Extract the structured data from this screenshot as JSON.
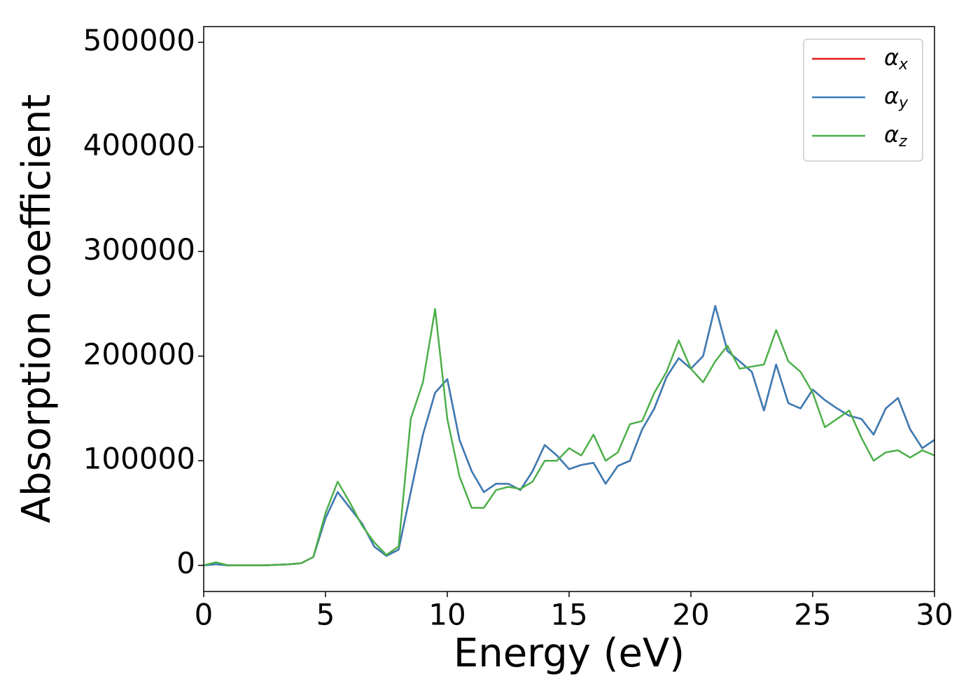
{
  "chart_data": {
    "type": "line",
    "xlabel": "Energy (eV)",
    "ylabel": "Absorption coefficient",
    "x": [
      0,
      0.5,
      1,
      1.5,
      2,
      2.5,
      3,
      3.5,
      4,
      4.5,
      5,
      5.5,
      6,
      6.5,
      7,
      7.5,
      8,
      8.5,
      9,
      9.5,
      10,
      10.5,
      11,
      11.5,
      12,
      12.5,
      13,
      13.5,
      14,
      14.5,
      15,
      15.5,
      16,
      16.5,
      17,
      17.5,
      18,
      18.5,
      19,
      19.5,
      20,
      20.5,
      21,
      21.5,
      22,
      22.5,
      23,
      23.5,
      24,
      24.5,
      25,
      25.5,
      26,
      26.5,
      27,
      27.5,
      28,
      28.5,
      29,
      29.5,
      30
    ],
    "series": [
      {
        "name": "αx",
        "color": "#e41a1c",
        "values": [
          0,
          1000,
          0,
          0,
          0,
          0,
          500,
          1000,
          2000,
          8000,
          45000,
          70000,
          55000,
          40000,
          18000,
          9000,
          15000,
          70000,
          125000,
          165000,
          178000,
          120000,
          90000,
          70000,
          78000,
          78000,
          72000,
          90000,
          115000,
          105000,
          92000,
          96000,
          98000,
          78000,
          95000,
          100000,
          130000,
          150000,
          180000,
          198000,
          188000,
          200000,
          248000,
          205000,
          195000,
          185000,
          148000,
          192000,
          155000,
          150000,
          168000,
          158000,
          150000,
          143000,
          140000,
          125000,
          150000,
          160000,
          130000,
          112000,
          120000
        ]
      },
      {
        "name": "αy",
        "color": "#377eb8",
        "values": [
          0,
          1000,
          0,
          0,
          0,
          0,
          500,
          1000,
          2000,
          8000,
          45000,
          70000,
          55000,
          40000,
          18000,
          9000,
          15000,
          70000,
          125000,
          165000,
          178000,
          120000,
          90000,
          70000,
          78000,
          78000,
          72000,
          90000,
          115000,
          105000,
          92000,
          96000,
          98000,
          78000,
          95000,
          100000,
          130000,
          150000,
          180000,
          198000,
          188000,
          200000,
          248000,
          205000,
          195000,
          185000,
          148000,
          192000,
          155000,
          150000,
          168000,
          158000,
          150000,
          143000,
          140000,
          125000,
          150000,
          160000,
          130000,
          112000,
          120000
        ]
      },
      {
        "name": "αz",
        "color": "#4daf4a",
        "values": [
          0,
          3000,
          0,
          0,
          0,
          0,
          500,
          1000,
          2000,
          8000,
          50000,
          80000,
          60000,
          38000,
          22000,
          10000,
          18000,
          140000,
          175000,
          245000,
          140000,
          85000,
          55000,
          55000,
          72000,
          75000,
          73000,
          80000,
          100000,
          100000,
          112000,
          105000,
          125000,
          100000,
          108000,
          135000,
          138000,
          165000,
          185000,
          215000,
          188000,
          175000,
          195000,
          210000,
          188000,
          190000,
          192000,
          225000,
          195000,
          185000,
          165000,
          132000,
          140000,
          148000,
          122000,
          100000,
          108000,
          110000,
          103000,
          110000,
          105000
        ]
      }
    ],
    "xlim": [
      0,
      30
    ],
    "xticks": [
      0,
      5,
      10,
      15,
      20,
      25,
      30
    ],
    "ylim": [
      -25000,
      515000
    ],
    "yticks": [
      0,
      100000,
      200000,
      300000,
      400000,
      500000
    ],
    "legend": "upper right",
    "grid": false
  }
}
